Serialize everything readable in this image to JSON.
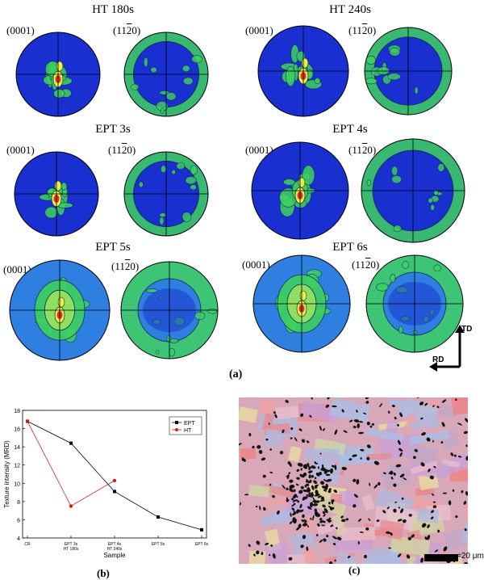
{
  "panel_a": {
    "rows": [
      {
        "left": {
          "title": "HT 180s",
          "basal_label": "(0001)",
          "prism_label_pre": "(11",
          "prism_label_over": "2",
          "prism_label_post": "0)"
        },
        "right": {
          "title": "HT 240s",
          "basal_label": "(0001)",
          "prism_label_pre": "(11",
          "prism_label_over": "2",
          "prism_label_post": "0)"
        }
      },
      {
        "left": {
          "title": "EPT 3s",
          "basal_label": "(0001)",
          "prism_label_pre": "(11",
          "prism_label_over": "2",
          "prism_label_post": "0)"
        },
        "right": {
          "title": "EPT 4s",
          "basal_label": "(0001)",
          "prism_label_pre": "(11",
          "prism_label_over": "2",
          "prism_label_post": "0)"
        }
      },
      {
        "left": {
          "title": "EPT 5s",
          "basal_label": "(0001)",
          "prism_label_pre": "(11",
          "prism_label_over": "2",
          "prism_label_post": "0)"
        },
        "right": {
          "title": "EPT 6s",
          "basal_label": "(0001)",
          "prism_label_pre": "(11",
          "prism_label_over": "2",
          "prism_label_post": "0)"
        }
      }
    ],
    "label": "(a)",
    "axis_td": "TD",
    "axis_rd": "RD",
    "colors": {
      "background": "#1a2fd0",
      "low": "#2f7fe0",
      "mid": "#3fd060",
      "high": "#e8f040",
      "peak": "#e03030"
    }
  },
  "panel_b": {
    "label": "(b)",
    "chart_data": {
      "type": "line",
      "xlabel": "Sample",
      "ylabel": "Texture intensity (MRD)",
      "ylim": [
        4,
        18
      ],
      "yticks": [
        4,
        6,
        8,
        10,
        12,
        14,
        16,
        18
      ],
      "categories": [
        {
          "line1": "CR",
          "line2": ""
        },
        {
          "line1": "EPT 3s",
          "line2": "HT 180s"
        },
        {
          "line1": "EPT 4s",
          "line2": "HT 240s"
        },
        {
          "line1": "EPT 5s",
          "line2": ""
        },
        {
          "line1": "EPT 6s",
          "line2": ""
        }
      ],
      "series": [
        {
          "name": "EPT",
          "color": "#000000",
          "marker": "square",
          "x": [
            0,
            1,
            2,
            3,
            4
          ],
          "values": [
            16.8,
            14.4,
            9.1,
            6.3,
            4.9
          ]
        },
        {
          "name": "HT",
          "color": "#cc2020",
          "marker": "circle",
          "x": [
            0,
            1,
            2
          ],
          "values": [
            16.8,
            7.5,
            10.3
          ]
        }
      ],
      "legend": "top-right"
    }
  },
  "panel_c": {
    "label": "(c)",
    "scale_bar": "=20 μm"
  }
}
